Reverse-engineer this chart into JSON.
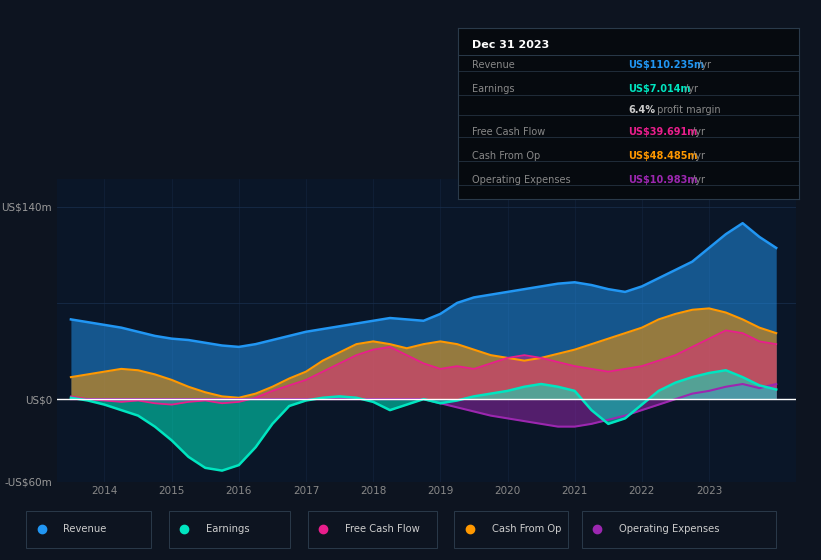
{
  "bg_color": "#0d1420",
  "plot_bg_color": "#0a1628",
  "grid_color": "#1a3050",
  "zero_line_color": "#ffffff",
  "ylim": [
    -60,
    160
  ],
  "xlim": [
    2013.3,
    2024.3
  ],
  "xticks": [
    2014,
    2015,
    2016,
    2017,
    2018,
    2019,
    2020,
    2021,
    2022,
    2023
  ],
  "series_colors": {
    "revenue": "#2196f3",
    "earnings": "#00e5c0",
    "free_cash_flow": "#e91e8c",
    "cash_from_op": "#ff9800",
    "operating_expenses": "#9c27b0"
  },
  "legend": {
    "items": [
      "Revenue",
      "Earnings",
      "Free Cash Flow",
      "Cash From Op",
      "Operating Expenses"
    ],
    "colors": [
      "#2196f3",
      "#00e5c0",
      "#e91e8c",
      "#ff9800",
      "#9c27b0"
    ]
  },
  "info_box": {
    "date": "Dec 31 2023",
    "rows": [
      {
        "label": "Revenue",
        "value": "US$110.235m",
        "value_color": "#2196f3",
        "unit": "/yr"
      },
      {
        "label": "Earnings",
        "value": "US$7.014m",
        "value_color": "#00e5c0",
        "unit": "/yr"
      },
      {
        "label": "",
        "value": "6.4%",
        "value_color": "#cccccc",
        "unit": " profit margin"
      },
      {
        "label": "Free Cash Flow",
        "value": "US$39.691m",
        "value_color": "#e91e8c",
        "unit": "/yr"
      },
      {
        "label": "Cash From Op",
        "value": "US$48.485m",
        "value_color": "#ff9800",
        "unit": "/yr"
      },
      {
        "label": "Operating Expenses",
        "value": "US$10.983m",
        "value_color": "#9c27b0",
        "unit": "/yr"
      }
    ]
  },
  "x": [
    2013.5,
    2013.75,
    2014.0,
    2014.25,
    2014.5,
    2014.75,
    2015.0,
    2015.25,
    2015.5,
    2015.75,
    2016.0,
    2016.25,
    2016.5,
    2016.75,
    2017.0,
    2017.25,
    2017.5,
    2017.75,
    2018.0,
    2018.25,
    2018.5,
    2018.75,
    2019.0,
    2019.25,
    2019.5,
    2019.75,
    2020.0,
    2020.25,
    2020.5,
    2020.75,
    2021.0,
    2021.25,
    2021.5,
    2021.75,
    2022.0,
    2022.25,
    2022.5,
    2022.75,
    2023.0,
    2023.25,
    2023.5,
    2023.75,
    2024.0
  ],
  "revenue": [
    58,
    56,
    54,
    52,
    49,
    46,
    44,
    43,
    41,
    39,
    38,
    40,
    43,
    46,
    49,
    51,
    53,
    55,
    57,
    59,
    58,
    57,
    62,
    70,
    74,
    76,
    78,
    80,
    82,
    84,
    85,
    83,
    80,
    78,
    82,
    88,
    94,
    100,
    110,
    120,
    128,
    118,
    110
  ],
  "earnings": [
    1,
    -1,
    -4,
    -8,
    -12,
    -20,
    -30,
    -42,
    -50,
    -52,
    -48,
    -35,
    -18,
    -5,
    -1,
    1,
    2,
    1,
    -2,
    -8,
    -4,
    0,
    -3,
    -1,
    2,
    4,
    6,
    9,
    11,
    9,
    6,
    -8,
    -18,
    -14,
    -4,
    6,
    12,
    16,
    19,
    21,
    16,
    10,
    7
  ],
  "free_cash_flow": [
    2,
    0,
    -1,
    -2,
    -1,
    -3,
    -4,
    -2,
    -1,
    -3,
    -2,
    1,
    6,
    10,
    14,
    20,
    26,
    32,
    36,
    38,
    32,
    26,
    22,
    24,
    22,
    26,
    30,
    32,
    30,
    27,
    24,
    22,
    20,
    22,
    24,
    28,
    32,
    38,
    44,
    50,
    48,
    42,
    40
  ],
  "cash_from_op": [
    16,
    18,
    20,
    22,
    21,
    18,
    14,
    9,
    5,
    2,
    1,
    4,
    9,
    15,
    20,
    28,
    34,
    40,
    42,
    40,
    37,
    40,
    42,
    40,
    36,
    32,
    30,
    28,
    30,
    33,
    36,
    40,
    44,
    48,
    52,
    58,
    62,
    65,
    66,
    63,
    58,
    52,
    48
  ],
  "operating_expenses": [
    0,
    0,
    0,
    0,
    0,
    0,
    0,
    0,
    0,
    0,
    0,
    0,
    0,
    0,
    0,
    0,
    0,
    0,
    0,
    0,
    0,
    0,
    -3,
    -6,
    -9,
    -12,
    -14,
    -16,
    -18,
    -20,
    -20,
    -18,
    -15,
    -12,
    -8,
    -4,
    0,
    4,
    6,
    9,
    11,
    8,
    11
  ]
}
